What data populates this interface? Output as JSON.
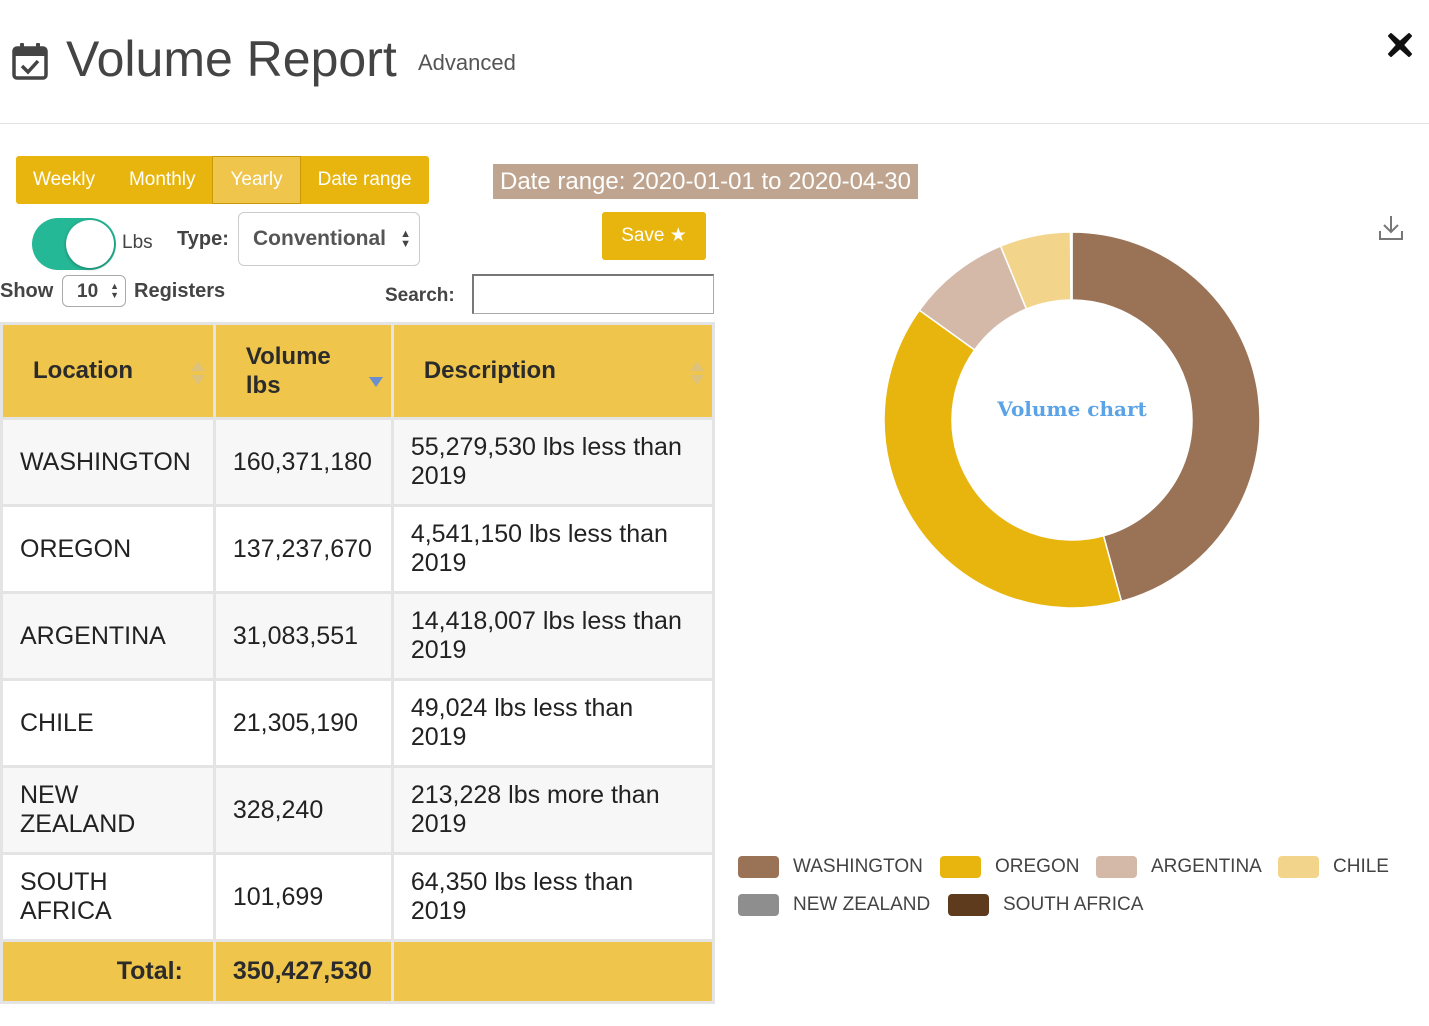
{
  "header": {
    "title": "Volume Report",
    "advanced_label": "Advanced",
    "icon": "calendar-check-icon",
    "close_icon": "close-icon"
  },
  "period_tabs": [
    {
      "label": "Weekly",
      "active": false
    },
    {
      "label": "Monthly",
      "active": false
    },
    {
      "label": "Yearly",
      "active": true
    },
    {
      "label": "Date range",
      "active": false
    }
  ],
  "date_range_text": "Date range: 2020-01-01 to 2020-04-30",
  "controls": {
    "unit_toggle_on": true,
    "unit_label": "Lbs",
    "type_label": "Type:",
    "type_value": "Conventional",
    "save_label": "Save ★",
    "show_label": "Show",
    "page_length": "10",
    "registers_label": "Registers",
    "search_label": "Search:",
    "search_value": ""
  },
  "table": {
    "columns": [
      {
        "label": "Location",
        "sort": "none"
      },
      {
        "label": "Volume lbs",
        "sort": "desc"
      },
      {
        "label": "Description",
        "sort": "none"
      }
    ],
    "rows": [
      {
        "location": "WASHINGTON",
        "volume": "160,371,180",
        "description": "55,279,530 lbs less than 2019"
      },
      {
        "location": "OREGON",
        "volume": "137,237,670",
        "description": "4,541,150 lbs less than 2019"
      },
      {
        "location": "ARGENTINA",
        "volume": "31,083,551",
        "description": "14,418,007 lbs less than 2019"
      },
      {
        "location": "CHILE",
        "volume": "21,305,190",
        "description": "49,024 lbs less than 2019"
      },
      {
        "location": "NEW ZEALAND",
        "volume": "328,240",
        "description": "213,228 lbs more than 2019"
      },
      {
        "location": "SOUTH AFRICA",
        "volume": "101,699",
        "description": "64,350 lbs less than 2019"
      }
    ],
    "total_label": "Total:",
    "total_value": "350,427,530"
  },
  "chart_data": {
    "type": "pie",
    "title": "Volume chart",
    "categories": [
      "WASHINGTON",
      "OREGON",
      "ARGENTINA",
      "CHILE",
      "NEW ZEALAND",
      "SOUTH AFRICA"
    ],
    "values": [
      160371180,
      137237670,
      31083551,
      21305190,
      328240,
      101699
    ],
    "colors": [
      "#9a7255",
      "#e8b50e",
      "#d4b9a9",
      "#f2d48a",
      "#8e8e8e",
      "#5e3b1c"
    ],
    "legend_position": "bottom",
    "donut": true
  },
  "download_icon": "download-icon"
}
